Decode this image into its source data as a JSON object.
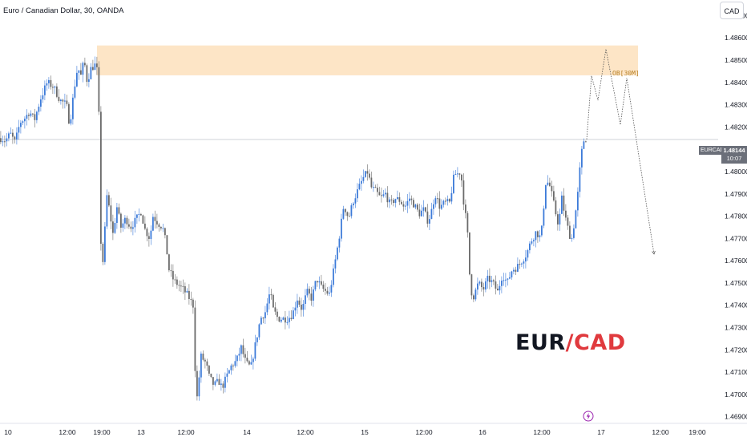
{
  "header": {
    "symbol_title": "Euro / Canadian Dollar, 30, OANDA",
    "currency": "CAD"
  },
  "current_price": {
    "symbol": "EURCAD",
    "price": "1.48144",
    "countdown": "10:07"
  },
  "order_block": {
    "label": "OB[30M]",
    "fill": "#fde5c6"
  },
  "pair_label": {
    "base": "EUR",
    "slash": "/",
    "quote": "CAD"
  },
  "colors": {
    "up": "#3d7bd9",
    "down": "#6b6b6b",
    "accent": "#e03a3e",
    "grid": "#f0f3fa"
  },
  "icons": [
    "lightning-icon"
  ],
  "chart_data": {
    "type": "candlestick",
    "symbol": "Euro / Canadian Dollar",
    "timeframe": "30",
    "y_ticks": [
      "1.48700",
      "1.48600",
      "1.48500",
      "1.48400",
      "1.48300",
      "1.48200",
      "1.48100",
      "1.48000",
      "1.47900",
      "1.47800",
      "1.47700",
      "1.47600",
      "1.47500",
      "1.47400",
      "1.47300",
      "1.47200",
      "1.47100",
      "1.47000",
      "1.46900"
    ],
    "x_ticks": [
      "10",
      "12:00",
      "19:00",
      "13",
      "12:00",
      "14",
      "12:00",
      "15",
      "12:00",
      "16",
      "12:00",
      "17",
      "12:00",
      "19:00"
    ],
    "ylim": [
      1.4687,
      1.4877
    ],
    "order_block_zone": [
      1.48432,
      1.48566
    ],
    "last_price": 1.48144,
    "grid": false,
    "ohlc_path": [
      [
        0,
        1.4815
      ],
      [
        6,
        1.4814
      ],
      [
        12,
        1.4817
      ],
      [
        18,
        1.4813
      ],
      [
        24,
        1.4822
      ],
      [
        30,
        1.4824
      ],
      [
        36,
        1.4827
      ],
      [
        42,
        1.4823
      ],
      [
        50,
        1.4833
      ],
      [
        58,
        1.484
      ],
      [
        66,
        1.4838
      ],
      [
        74,
        1.4832
      ],
      [
        82,
        1.483
      ],
      [
        86,
        1.4821
      ],
      [
        92,
        1.4838
      ],
      [
        96,
        1.4847
      ],
      [
        100,
        1.4843
      ],
      [
        104,
        1.485
      ],
      [
        108,
        1.484
      ],
      [
        112,
        1.4846
      ],
      [
        118,
        1.4848
      ],
      [
        122,
        1.4843
      ],
      [
        124,
        1.4772
      ],
      [
        128,
        1.4758
      ],
      [
        132,
        1.479
      ],
      [
        136,
        1.4782
      ],
      [
        140,
        1.4772
      ],
      [
        145,
        1.4784
      ],
      [
        150,
        1.4775
      ],
      [
        156,
        1.4779
      ],
      [
        162,
        1.4775
      ],
      [
        168,
        1.4778
      ],
      [
        175,
        1.4782
      ],
      [
        180,
        1.4774
      ],
      [
        186,
        1.477
      ],
      [
        190,
        1.478
      ],
      [
        196,
        1.4777
      ],
      [
        202,
        1.4775
      ],
      [
        206,
        1.4768
      ],
      [
        210,
        1.4756
      ],
      [
        216,
        1.4751
      ],
      [
        222,
        1.4749
      ],
      [
        228,
        1.4747
      ],
      [
        234,
        1.4744
      ],
      [
        240,
        1.474
      ],
      [
        244,
        1.4695
      ],
      [
        250,
        1.4717
      ],
      [
        256,
        1.4714
      ],
      [
        260,
        1.4708
      ],
      [
        266,
        1.4704
      ],
      [
        272,
        1.4706
      ],
      [
        276,
        1.4703
      ],
      [
        282,
        1.4708
      ],
      [
        288,
        1.4713
      ],
      [
        294,
        1.4715
      ],
      [
        300,
        1.4721
      ],
      [
        306,
        1.4714
      ],
      [
        312,
        1.4712
      ],
      [
        318,
        1.4723
      ],
      [
        324,
        1.4734
      ],
      [
        330,
        1.4737
      ],
      [
        336,
        1.4746
      ],
      [
        340,
        1.4738
      ],
      [
        346,
        1.4734
      ],
      [
        352,
        1.4734
      ],
      [
        358,
        1.4734
      ],
      [
        364,
        1.4736
      ],
      [
        370,
        1.4743
      ],
      [
        376,
        1.4738
      ],
      [
        382,
        1.4746
      ],
      [
        388,
        1.4743
      ],
      [
        394,
        1.4752
      ],
      [
        400,
        1.4748
      ],
      [
        406,
        1.4746
      ],
      [
        410,
        1.4745
      ],
      [
        416,
        1.4757
      ],
      [
        422,
        1.477
      ],
      [
        428,
        1.4785
      ],
      [
        434,
        1.4779
      ],
      [
        440,
        1.4787
      ],
      [
        446,
        1.4792
      ],
      [
        452,
        1.4797
      ],
      [
        458,
        1.48
      ],
      [
        462,
        1.4793
      ],
      [
        468,
        1.4791
      ],
      [
        474,
        1.4788
      ],
      [
        480,
        1.479
      ],
      [
        486,
        1.4785
      ],
      [
        492,
        1.4788
      ],
      [
        498,
        1.4787
      ],
      [
        504,
        1.4784
      ],
      [
        510,
        1.4788
      ],
      [
        516,
        1.4785
      ],
      [
        522,
        1.4781
      ],
      [
        528,
        1.4783
      ],
      [
        532,
        1.4778
      ],
      [
        536,
        1.478
      ],
      [
        542,
        1.479
      ],
      [
        548,
        1.4784
      ],
      [
        554,
        1.4786
      ],
      [
        560,
        1.4786
      ],
      [
        566,
        1.4799
      ],
      [
        570,
        1.4799
      ],
      [
        574,
        1.48
      ],
      [
        578,
        1.4785
      ],
      [
        582,
        1.4775
      ],
      [
        586,
        1.4747
      ],
      [
        590,
        1.4744
      ],
      [
        596,
        1.475
      ],
      [
        602,
        1.4747
      ],
      [
        608,
        1.4752
      ],
      [
        614,
        1.475
      ],
      [
        620,
        1.4746
      ],
      [
        626,
        1.4754
      ],
      [
        632,
        1.475
      ],
      [
        638,
        1.4756
      ],
      [
        644,
        1.4757
      ],
      [
        650,
        1.476
      ],
      [
        656,
        1.4763
      ],
      [
        662,
        1.4769
      ],
      [
        668,
        1.4773
      ],
      [
        674,
        1.477
      ],
      [
        680,
        1.4795
      ],
      [
        684,
        1.4795
      ],
      [
        688,
        1.4789
      ],
      [
        692,
        1.4782
      ],
      [
        696,
        1.4776
      ],
      [
        700,
        1.4788
      ],
      [
        704,
        1.478
      ],
      [
        708,
        1.4774
      ],
      [
        712,
        1.4769
      ],
      [
        716,
        1.4778
      ],
      [
        720,
        1.479
      ],
      [
        724,
        1.4807
      ],
      [
        728,
        1.4815
      ],
      [
        732,
        1.48144
      ]
    ],
    "projection": [
      [
        732,
        1.48144
      ],
      [
        738,
        1.4843
      ],
      [
        746,
        1.4832
      ],
      [
        756,
        1.4855
      ],
      [
        774,
        1.4821
      ],
      [
        782,
        1.4842
      ],
      [
        816,
        1.4763
      ]
    ]
  }
}
